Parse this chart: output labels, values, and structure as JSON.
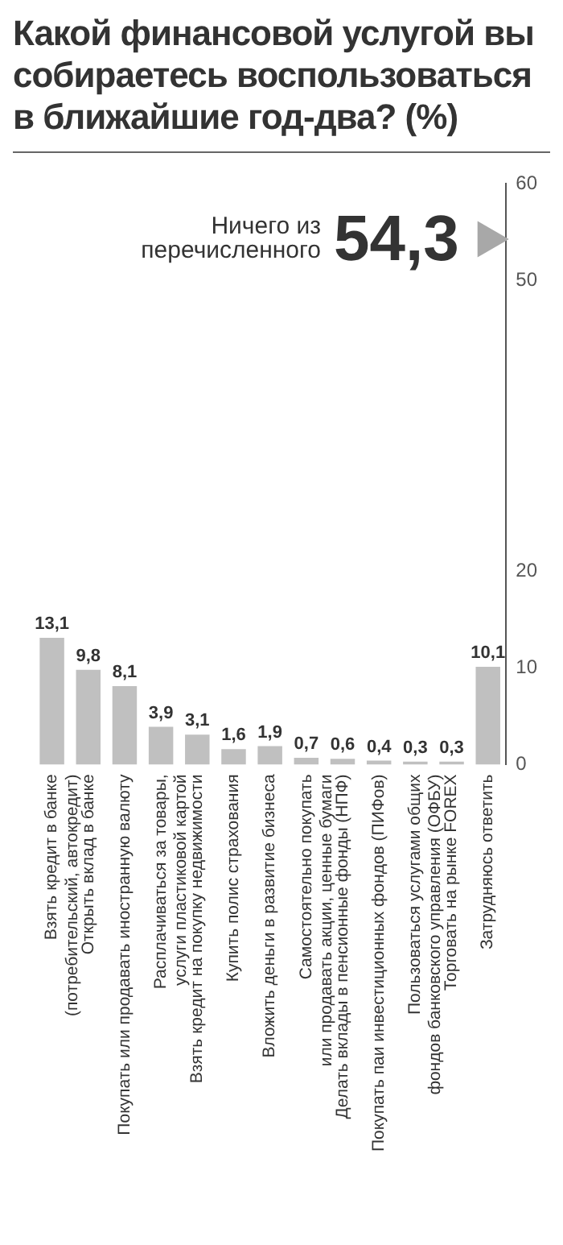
{
  "chart_data": {
    "type": "bar",
    "title": "Какой финансовой услугой вы собираетесь воспользоваться в ближайшие год-два? (%)",
    "categories": [
      "Взять кредит в банке\n(потребительский, автокредит)",
      "Открыть вклад в банке",
      "Покупать или продавать иностранную валюту",
      "Расплачиваться за товары,\nуслуги пластиковой картой",
      "Взять кредит на покупку недвижимости",
      "Купить полис страхования",
      "Вложить деньги в развитие бизнеса",
      "Самостоятельно покупать\nили продавать акции, ценные бумаги",
      "Делать вклады в пенсионные фонды (НПФ)",
      "Покупать паи инвестиционных фондов (ПИФов)",
      "Пользоваться услугами общих\nфондов банковского управления (ОФБУ)",
      "Торговать на рынке FOREX",
      "Затрудняюсь ответить"
    ],
    "series": [
      {
        "color": "#c0c0c0",
        "values": [
          13.1,
          9.8,
          8.1,
          3.9,
          3.1,
          1.6,
          1.9,
          0.7,
          0.6,
          0.4,
          0.3,
          0.3,
          10.1
        ],
        "value_labels": [
          "13,1",
          "9,8",
          "8,1",
          "3,9",
          "3,1",
          "1,6",
          "1,9",
          "0,7",
          "0,6",
          "0,4",
          "0,3",
          "0,3",
          "10,1"
        ]
      },
      {
        "type": "scatter",
        "name": "Ничего из\nперечисленного",
        "x": [
          "Затрудняюсь ответить"
        ],
        "values": [
          54.3
        ],
        "value_labels": [
          "54,3"
        ],
        "color": "#a8a8a8",
        "marker": "triangle"
      }
    ],
    "ylim": [
      0,
      60
    ],
    "yticks": [
      0,
      10,
      20,
      50,
      60
    ],
    "grid": false,
    "legend": false
  }
}
